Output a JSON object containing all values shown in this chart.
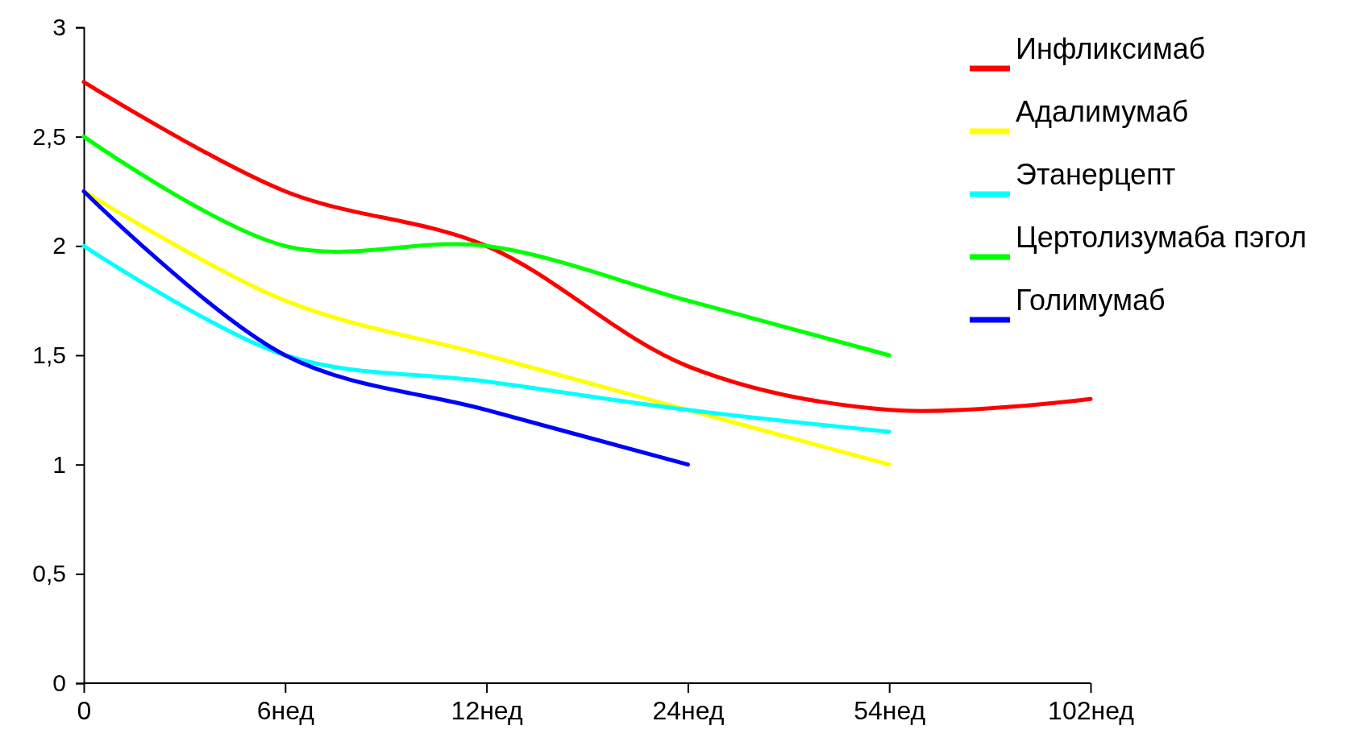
{
  "chart_data": {
    "type": "line",
    "categories": [
      "0",
      "6нед",
      "12нед",
      "24нед",
      "54нед",
      "102нед"
    ],
    "series": [
      {
        "name": "Инфликсимаб",
        "color": "#ff0000",
        "values": [
          2.75,
          2.25,
          2.0,
          1.45,
          1.25,
          1.3
        ]
      },
      {
        "name": "Адалимумаб",
        "color": "#ffff00",
        "values": [
          2.25,
          1.75,
          1.5,
          1.25,
          1.0,
          null
        ]
      },
      {
        "name": "Этанерцепт",
        "color": "#00ffff",
        "values": [
          2.0,
          1.5,
          1.38,
          1.25,
          1.15,
          null
        ]
      },
      {
        "name": "Цертолизумаба пэгол",
        "color": "#00ff00",
        "values": [
          2.5,
          2.0,
          2.0,
          1.75,
          1.5,
          null
        ]
      },
      {
        "name": "Голимумаб",
        "color": "#0000ff",
        "values": [
          2.25,
          1.5,
          1.25,
          1.0,
          null,
          null
        ]
      }
    ],
    "ylim": [
      0,
      3
    ],
    "yticks": [
      0,
      {
        "value": 0.5,
        "label": "0,5"
      },
      1,
      {
        "value": 1.5,
        "label": "1,5"
      },
      2,
      {
        "value": 2.5,
        "label": "2,5"
      },
      3
    ],
    "grid": false,
    "legend": "top right",
    "marker": "none",
    "line_style": "solid"
  }
}
